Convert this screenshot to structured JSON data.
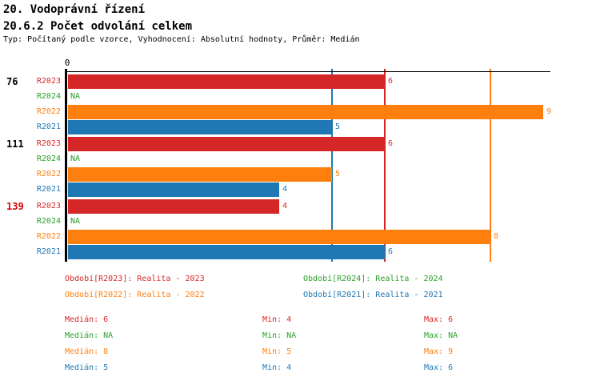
{
  "header": {
    "title_line1": "20. Vodoprávní řízení",
    "title_line2": "20.6.2 Počet odvolání celkem",
    "subtitle": "Typ: Počítaný podle vzorce, Vyhodnocení: Absolutní hodnoty, Průměr: Medián"
  },
  "chart_data": {
    "type": "bar",
    "orientation": "horizontal",
    "title": "20.6.2 Počet odvolání celkem",
    "axis": {
      "origin_label": "0",
      "min": 0,
      "max": 9.1,
      "gridlines": false
    },
    "na_label": "NA",
    "series": [
      {
        "id": "R2023",
        "label": "R2023",
        "name": "Realita - 2023",
        "color": "#d62728"
      },
      {
        "id": "R2024",
        "label": "R2024",
        "name": "Realita - 2024",
        "color": "#2ca02c"
      },
      {
        "id": "R2022",
        "label": "R2022",
        "name": "Realita - 2022",
        "color": "#ff7f0e"
      },
      {
        "id": "R2021",
        "label": "R2021",
        "name": "Realita - 2021",
        "color": "#1f77b4"
      }
    ],
    "groups": [
      {
        "label": "76",
        "label_color": "#000000",
        "values": [
          6,
          null,
          9,
          5
        ]
      },
      {
        "label": "111",
        "label_color": "#000000",
        "values": [
          6,
          null,
          5,
          4
        ]
      },
      {
        "label": "139",
        "label_color": "#dd0000",
        "values": [
          4,
          null,
          8,
          6
        ]
      }
    ],
    "median_lines": [
      {
        "series": "R2021",
        "value": 5,
        "color": "#1f77b4"
      },
      {
        "series": "R2023",
        "value": 6,
        "color": "#d62728"
      },
      {
        "series": "R2022",
        "value": 8,
        "color": "#ff7f0e"
      }
    ]
  },
  "legend": {
    "items": [
      {
        "text": "Období[R2023]: Realita - 2023",
        "color": "#d62728",
        "col": 0,
        "row": 0
      },
      {
        "text": "Období[R2024]: Realita - 2024",
        "color": "#2ca02c",
        "col": 1,
        "row": 0
      },
      {
        "text": "Období[R2022]: Realita - 2022",
        "color": "#ff7f0e",
        "col": 0,
        "row": 1
      },
      {
        "text": "Období[R2021]: Realita - 2021",
        "color": "#1f77b4",
        "col": 1,
        "row": 1
      }
    ]
  },
  "stats": {
    "median_label": "Medián",
    "min_label": "Min",
    "max_label": "Max",
    "rows": [
      {
        "series": "R2023",
        "color": "#d62728",
        "median": "6",
        "min": "4",
        "max": "6"
      },
      {
        "series": "R2024",
        "color": "#2ca02c",
        "median": "NA",
        "min": "NA",
        "max": "NA"
      },
      {
        "series": "R2022",
        "color": "#ff7f0e",
        "median": "8",
        "min": "5",
        "max": "9"
      },
      {
        "series": "R2021",
        "color": "#1f77b4",
        "median": "5",
        "min": "4",
        "max": "6"
      }
    ]
  }
}
